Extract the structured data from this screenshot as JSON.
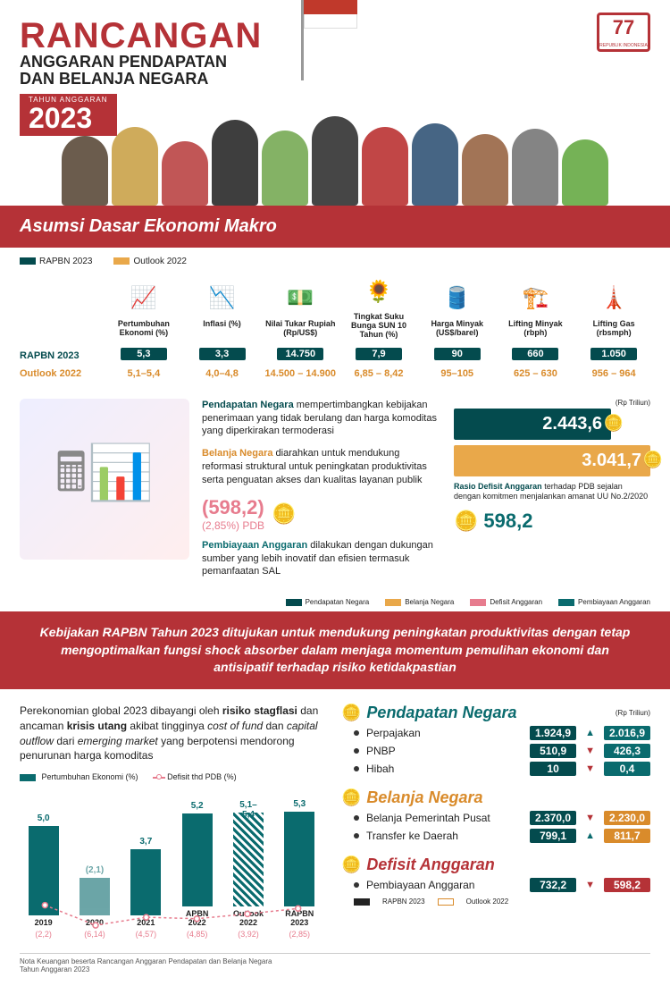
{
  "colors": {
    "red": "#b53237",
    "teal": "#0a6b6e",
    "darkteal": "#044b4e",
    "orange": "#d98b2b",
    "lightorange": "#e9a84a",
    "pink": "#e77c8e",
    "grey": "#7d7d7d",
    "gold": "#f0b93a"
  },
  "header": {
    "title1": "RANCANGAN",
    "title2": "ANGGARAN PENDAPATAN",
    "title3": "DAN BELANJA NEGARA",
    "year_label": "TAHUN  ANGGARAN",
    "year": "2023",
    "logo_text": "77",
    "logo_sub": "REPUBLIK INDONESIA",
    "people_heights": [
      78,
      88,
      72,
      96,
      84,
      100,
      88,
      92,
      80,
      86,
      74
    ],
    "people_colors": [
      "#5b4b3a",
      "#caa24a",
      "#b44",
      "#2a2a2a",
      "#7a5",
      "#333",
      "#b33",
      "#357",
      "#964",
      "#777",
      "#6a4"
    ]
  },
  "macro": {
    "section_title": "Asumsi Dasar Ekonomi Makro",
    "legend": [
      {
        "label": "RAPBN 2023",
        "color": "#044b4e"
      },
      {
        "label": "Outlook 2022",
        "color": "#e9a84a"
      }
    ],
    "row_label_1": "RAPBN 2023",
    "row_label_2": "Outlook 2022",
    "items": [
      {
        "icon": "📈",
        "name": "Pertumbuhan Ekonomi (%)",
        "rapbn": "5,3",
        "outlook": "5,1–5,4"
      },
      {
        "icon": "📉",
        "name": "Inflasi (%)",
        "rapbn": "3,3",
        "outlook": "4,0–4,8"
      },
      {
        "icon": "💵",
        "name": "Nilai Tukar Rupiah (Rp/US$)",
        "rapbn": "14.750",
        "outlook": "14.500 – 14.900"
      },
      {
        "icon": "🌻",
        "name": "Tingkat Suku Bunga SUN 10 Tahun (%)",
        "rapbn": "7,9",
        "outlook": "6,85 – 8,42"
      },
      {
        "icon": "🛢️",
        "name": "Harga Minyak (US$/barel)",
        "rapbn": "90",
        "outlook": "95–105"
      },
      {
        "icon": "🏗️",
        "name": "Lifting Minyak (rbph)",
        "rapbn": "660",
        "outlook": "625 – 630"
      },
      {
        "icon": "🗼",
        "name": "Lifting Gas (rbsmph)",
        "rapbn": "1.050",
        "outlook": "956 – 964"
      }
    ]
  },
  "middle": {
    "unit": "(Rp Triliun)",
    "pendapatan_title": "Pendapatan Negara",
    "pendapatan_text": " mempertimbangkan kebijakan penerimaan yang tidak berulang dan harga komoditas yang diperkirakan termoderasi",
    "belanja_title": "Belanja Negara",
    "belanja_text": " diarahkan untuk mendukung reformasi struktural untuk peningkatan produktivitas serta penguatan akses dan kualitas layanan publik",
    "deficit_value": "(598,2)",
    "deficit_pct": "(2,85%) PDB",
    "rasio_title": "Rasio Defisit Anggaran",
    "rasio_text": " terhadap PDB sejalan dengan komitmen menjalankan amanat UU No.2/2020",
    "pembiayaan_title": "Pembiayaan Anggaran",
    "pembiayaan_text": " dilakukan dengan dukungan sumber yang lebih inovatif dan efisien termasuk pemanfaatan SAL",
    "pembiayaan_value": "598,2",
    "bar_pendapatan": "2.443,6",
    "bar_belanja": "3.041,7",
    "legend": [
      {
        "label": "Pendapatan Negara",
        "color": "#044b4e"
      },
      {
        "label": "Belanja Negara",
        "color": "#e9a84a"
      },
      {
        "label": "Defisit Anggaran",
        "color": "#e77c8e"
      },
      {
        "label": "Pembiayaan Anggaran",
        "color": "#0a6b6e"
      }
    ]
  },
  "policy": {
    "text_a": "Kebijakan RAPBN Tahun 2023 ditujukan untuk mendukung peningkatan produktivitas dengan tetap mengoptimalkan fungsi ",
    "text_em": "shock absorber",
    "text_b": " dalam menjaga momentum pemulihan ekonomi dan antisipatif terhadap risiko ketidakpastian"
  },
  "bottom_left": {
    "intro_a": "Perekonomian global 2023 dibayangi oleh ",
    "intro_b1": "risiko stagflasi",
    "intro_c": " dan ancaman ",
    "intro_b2": "krisis utang",
    "intro_d": " akibat tingginya ",
    "intro_i1": "cost of fund",
    "intro_e": " dan ",
    "intro_i2": "capital outflow",
    "intro_f": " dari ",
    "intro_i3": "emerging market",
    "intro_g": " yang berpotensi mendorong penurunan harga komoditas",
    "legend": [
      {
        "label": "Pertumbuhan Ekonomi (%)",
        "color": "#0a6b6e",
        "type": "bar"
      },
      {
        "label": "Defisit thd PDB (%)",
        "color": "#e77c8e",
        "type": "line"
      }
    ],
    "chart": {
      "max": 6.0,
      "years": [
        "2019",
        "2020",
        "2021",
        "APBN 2022",
        "Outlook 2022",
        "RAPBN 2023"
      ],
      "growth": [
        5.0,
        -2.1,
        3.7,
        5.2,
        5.25,
        5.3
      ],
      "growth_lbl": [
        "5,0",
        "(2,1)",
        "3,7",
        "5,2",
        "5,1– 5,4",
        "5,3"
      ],
      "hatched": [
        false,
        false,
        false,
        false,
        true,
        false
      ],
      "deficit": [
        -2.2,
        -6.14,
        -4.57,
        -4.85,
        -3.92,
        -2.85
      ],
      "deficit_lbl": [
        "(2,2)",
        "(6,14)",
        "(4,57)",
        "(4,85)",
        "(3,92)",
        "(2,85)"
      ]
    }
  },
  "bottom_right": {
    "unit": "(Rp Triliun)",
    "sections": [
      {
        "title": "Pendapatan Negara",
        "color": "#0a6b6e",
        "rows": [
          {
            "name": "Perpajakan",
            "v1": "1.924,9",
            "arrow": "▲",
            "ac": "#0a6b6e",
            "v2": "2.016,9"
          },
          {
            "name": "PNBP",
            "v1": "510,9",
            "arrow": "▼",
            "ac": "#b53237",
            "v2": "426,3"
          },
          {
            "name": "Hibah",
            "v1": "10",
            "arrow": "▼",
            "ac": "#b53237",
            "v2": "0,4"
          }
        ]
      },
      {
        "title": "Belanja Negara",
        "color": "#d98b2b",
        "rows": [
          {
            "name": "Belanja Pemerintah Pusat",
            "v1": "2.370,0",
            "arrow": "▼",
            "ac": "#b53237",
            "v2": "2.230,0"
          },
          {
            "name": "Transfer ke Daerah",
            "v1": "799,1",
            "arrow": "▲",
            "ac": "#0a6b6e",
            "v2": "811,7"
          }
        ]
      },
      {
        "title": "Defisit Anggaran",
        "color": "#b53237",
        "rows": [
          {
            "name": "Pembiayaan Anggaran",
            "v1": "732,2",
            "arrow": "▼",
            "ac": "#b53237",
            "v2": "598,2"
          }
        ],
        "legend": [
          {
            "swatch": "#222",
            "label": "RAPBN 2023"
          },
          {
            "swatch_border": "#d98b2b",
            "label": "Outlook 2022"
          }
        ]
      }
    ]
  },
  "footer": {
    "line1": "Nota Keuangan beserta Rancangan Anggaran Pendapatan dan Belanja Negara",
    "line2": "Tahun Anggaran 2023"
  }
}
